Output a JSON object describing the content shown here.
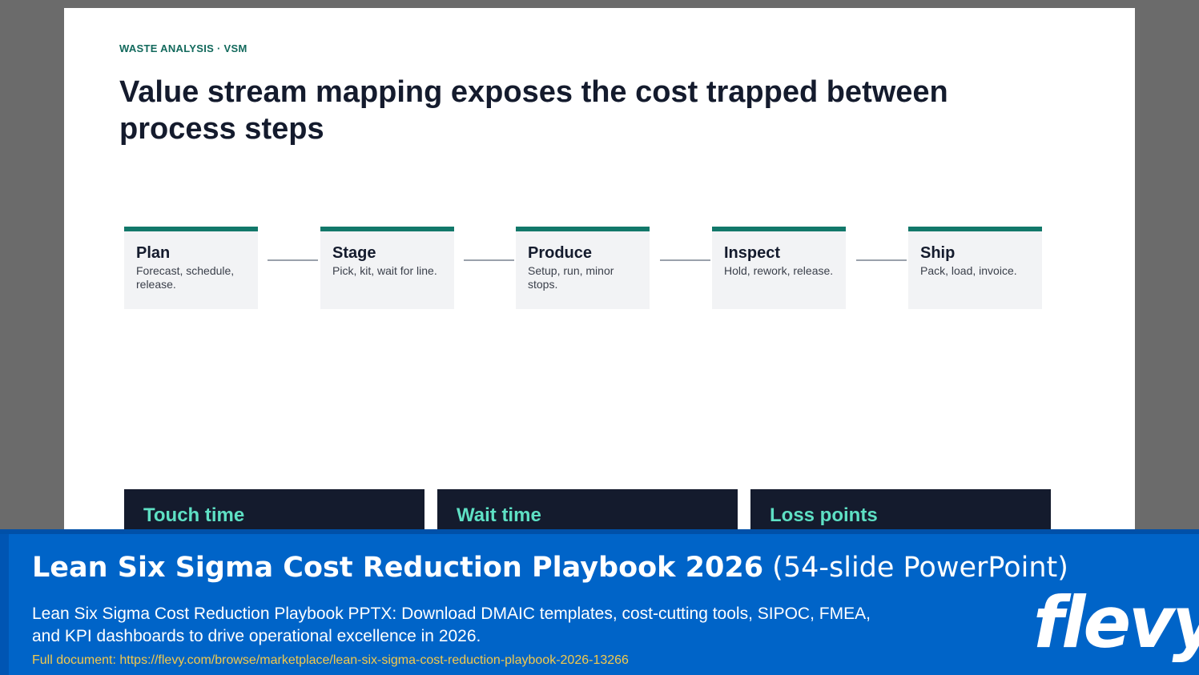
{
  "slide": {
    "eyebrow": "WASTE ANALYSIS · VSM",
    "title": "Value stream mapping exposes the cost trapped between process steps",
    "steps": [
      {
        "name": "Plan",
        "desc": "Forecast, schedule, release."
      },
      {
        "name": "Stage",
        "desc": "Pick, kit, wait for line."
      },
      {
        "name": "Produce",
        "desc": "Setup, run, minor stops."
      },
      {
        "name": "Inspect",
        "desc": "Hold, rework, release."
      },
      {
        "name": "Ship",
        "desc": "Pack, load, invoice."
      }
    ],
    "cards": [
      {
        "title": "Touch time"
      },
      {
        "title": "Wait time"
      },
      {
        "title": "Loss points"
      }
    ]
  },
  "banner": {
    "title_bold": "Lean Six Sigma Cost Reduction Playbook 2026",
    "title_rest": " (54-slide PowerPoint)",
    "description": "Lean Six Sigma Cost Reduction Playbook PPTX: Download DMAIC templates, cost-cutting tools, SIPOC, FMEA, and KPI dashboards to drive operational excellence in 2026.",
    "link_label": "Full document: ",
    "link_url": "https://flevy.com/browse/marketplace/lean-six-sigma-cost-reduction-playbook-2026-13266",
    "logo": "flevy"
  },
  "colors": {
    "accent": "#12786a",
    "card_bg": "#141b2d",
    "card_title": "#5ee0c4",
    "banner_bg": "#0064c8",
    "link": "#f2c94c"
  }
}
